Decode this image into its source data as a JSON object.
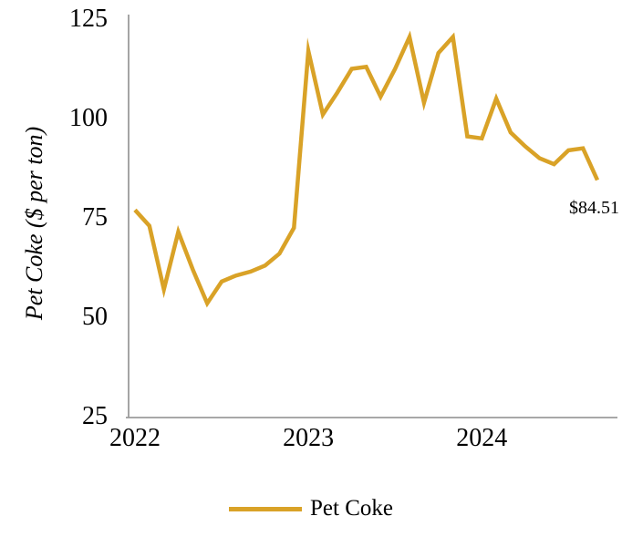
{
  "figure": {
    "y_axis_title": "Pet Coke ($ per ton)",
    "y_ticks": [
      "125",
      "100",
      "75",
      "50",
      "25"
    ],
    "x_ticks": [
      "2022",
      "2023",
      "2024"
    ],
    "annotation": "$84.51",
    "legend_label": "Pet Coke"
  },
  "colors": {
    "line": "#D9A227",
    "axis": "#9B9B9B",
    "text": "#000000"
  },
  "chart_data": {
    "type": "line",
    "title": "",
    "xlabel": "",
    "ylabel": "Pet Coke ($ per ton)",
    "ylim": [
      25,
      125
    ],
    "y_tick_values": [
      125,
      100,
      75,
      50,
      25
    ],
    "x_tick_labels": [
      "2022",
      "2023",
      "2024"
    ],
    "x_tick_month_index": [
      0,
      12,
      24
    ],
    "grid": false,
    "legend_position": "bottom-center",
    "x": [
      "2022-01",
      "2022-02",
      "2022-03",
      "2022-04",
      "2022-05",
      "2022-06",
      "2022-07",
      "2022-08",
      "2022-09",
      "2022-10",
      "2022-11",
      "2022-12",
      "2023-01",
      "2023-02",
      "2023-03",
      "2023-04",
      "2023-05",
      "2023-06",
      "2023-07",
      "2023-08",
      "2023-09",
      "2023-10",
      "2023-11",
      "2023-12",
      "2024-01",
      "2024-02",
      "2024-03",
      "2024-04",
      "2024-05",
      "2024-06",
      "2024-07",
      "2024-08",
      "2024-09"
    ],
    "series": [
      {
        "name": "Pet Coke",
        "values": [
          77,
          73,
          57,
          71.5,
          62,
          53.5,
          59,
          60.5,
          61.5,
          63,
          66,
          72.5,
          117,
          101,
          106.5,
          112.5,
          113,
          105.5,
          112.5,
          120.5,
          104,
          116.5,
          120.5,
          95.5,
          95,
          105,
          96.5,
          93,
          90,
          88.5,
          92,
          92.5,
          84.51
        ]
      }
    ],
    "annotation": {
      "text": "$84.51",
      "attached_to": "last_point",
      "value": 84.51
    }
  }
}
